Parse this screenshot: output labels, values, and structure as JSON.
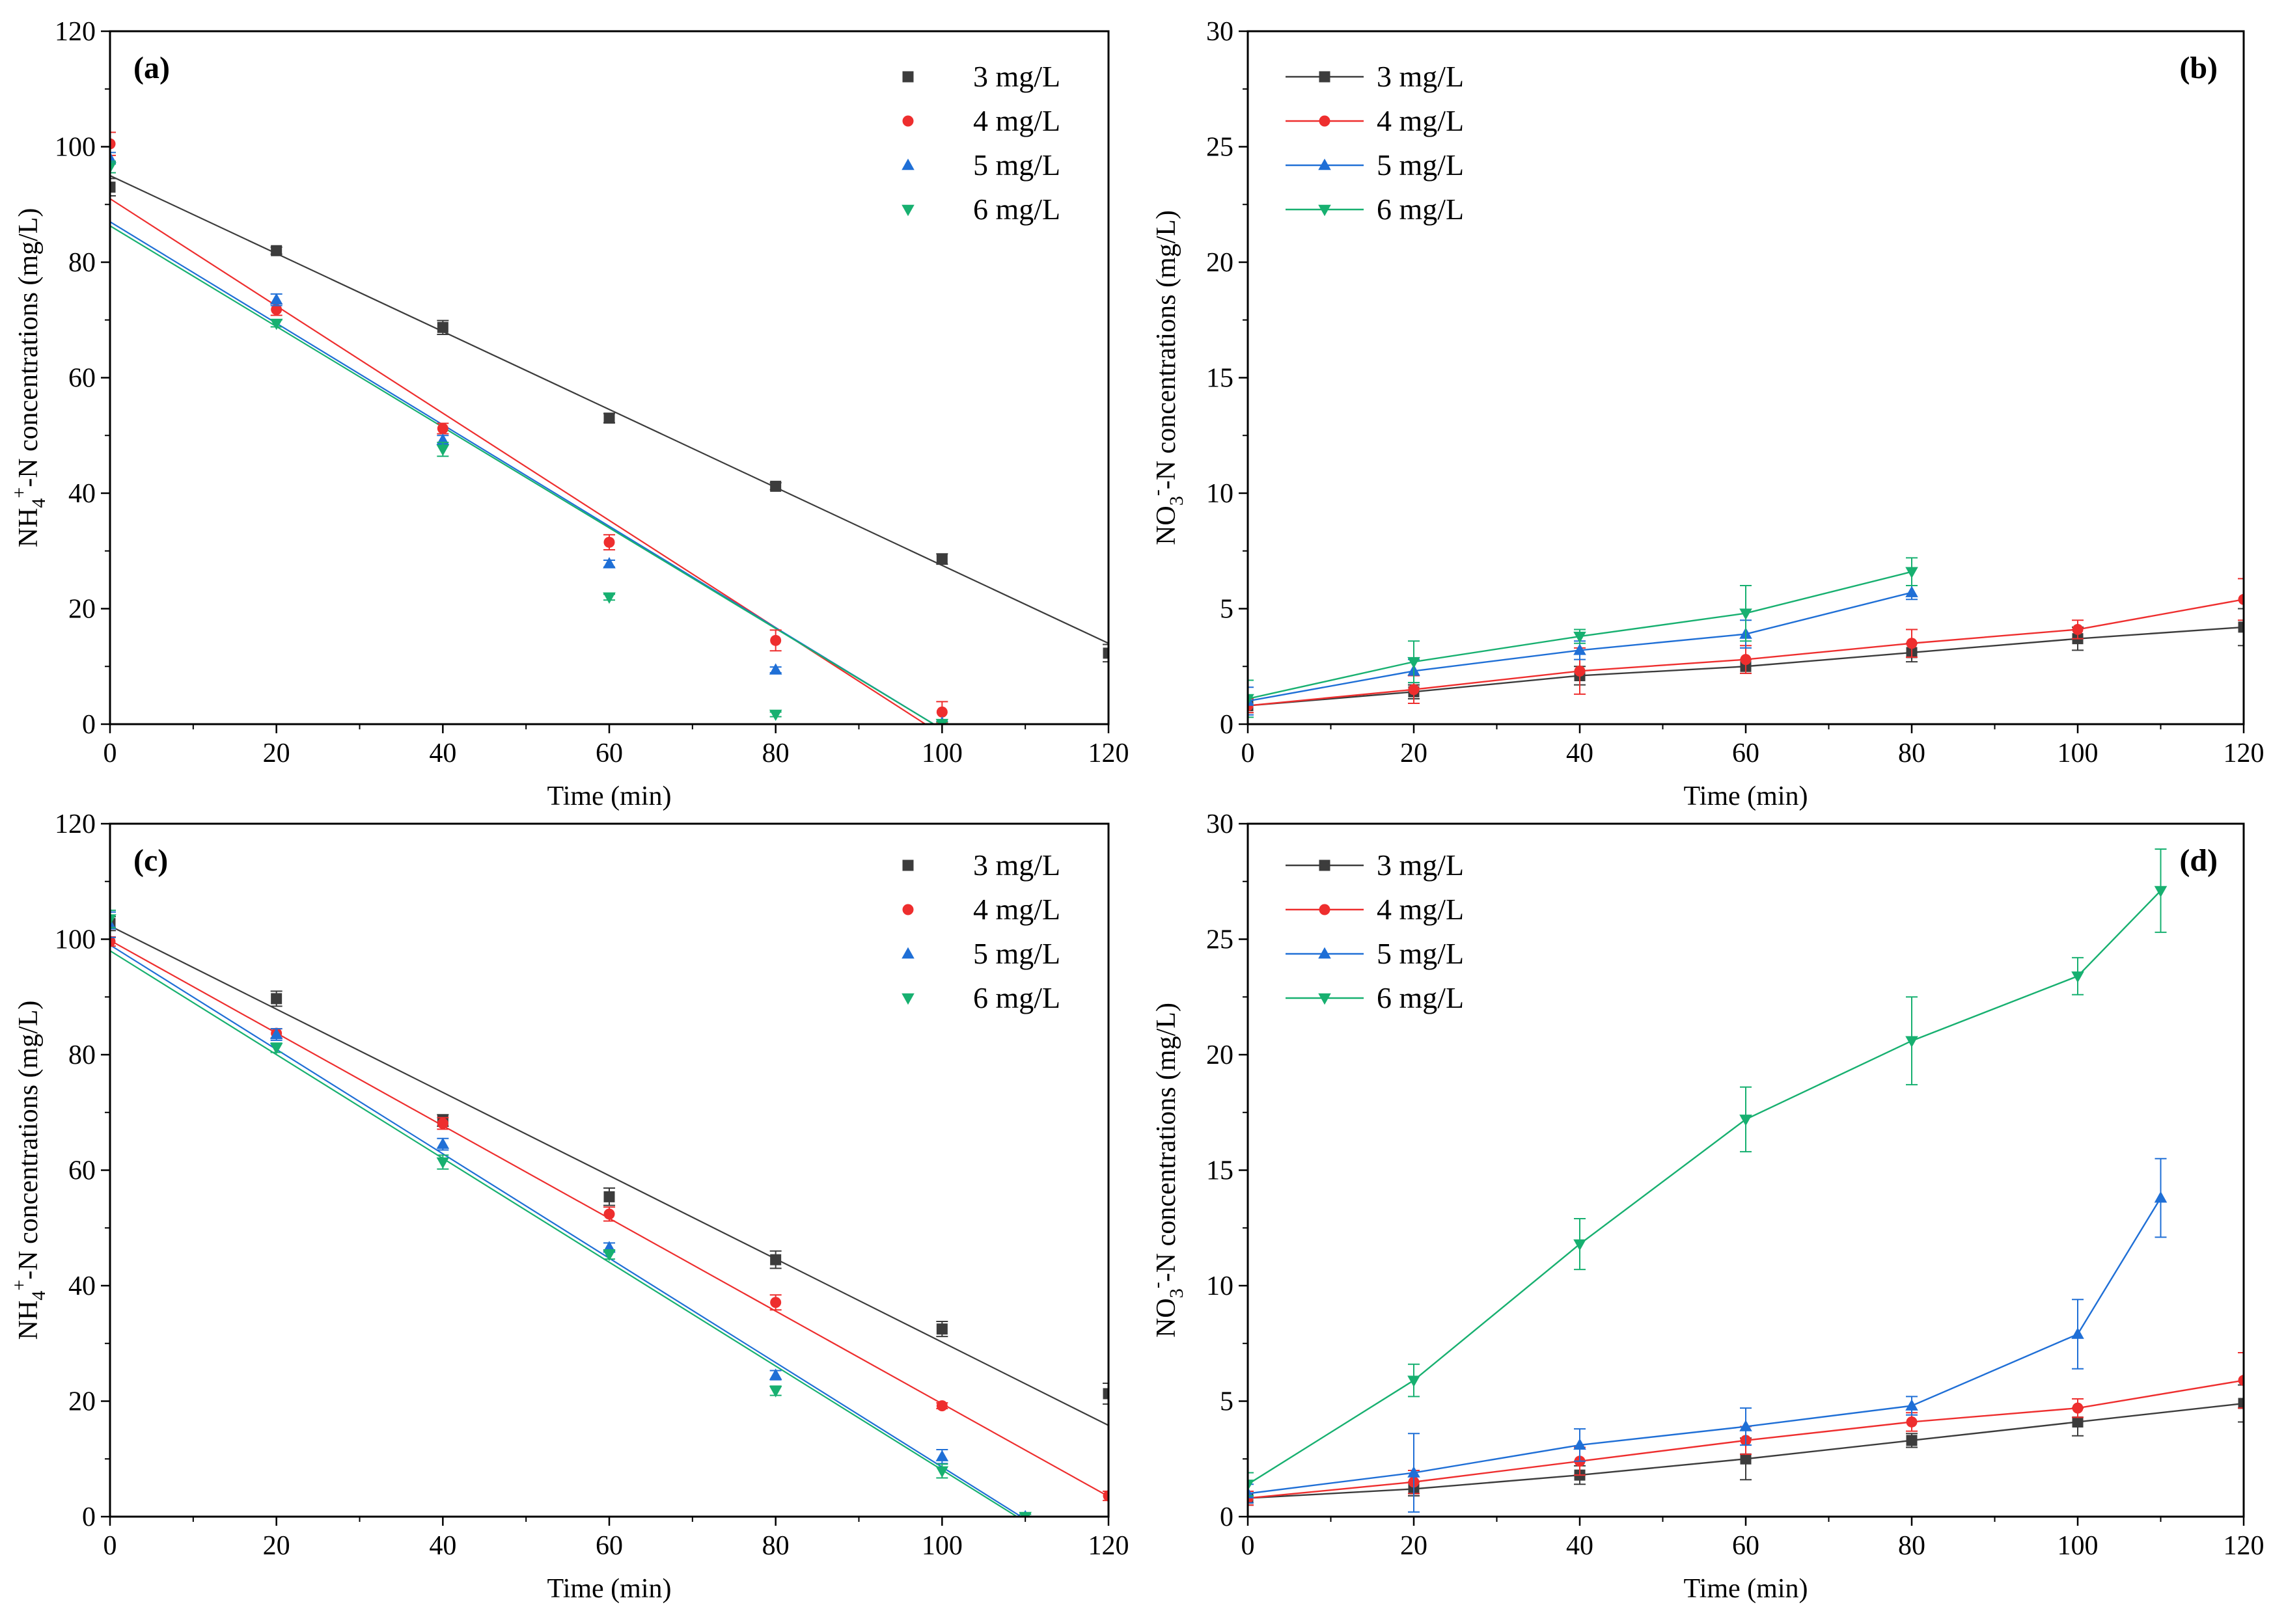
{
  "colors": {
    "3 mg/L": "#3c3c3c",
    "4 mg/L": "#ee2e2e",
    "5 mg/L": "#1f6fd6",
    "6 mg/L": "#17b070",
    "axis": "#000000"
  },
  "chart_data": [
    {
      "id": "a",
      "type": "scatter",
      "panel_label": "(a)",
      "xlabel": "Time (min)",
      "ylabel": "NH4+-N concentrations (mg/L)",
      "ylabel_parts": {
        "main": "NH",
        "sub": "4",
        "sup": "+",
        "rest": "-N concentrations (mg/L)"
      },
      "xlim": [
        0,
        120
      ],
      "ylim": [
        0,
        120
      ],
      "xticks": [
        "0",
        "20",
        "40",
        "60",
        "80",
        "100",
        "120"
      ],
      "yticks": [
        "0",
        "20",
        "40",
        "60",
        "80",
        "100",
        "120"
      ],
      "legend_position": "top-right",
      "legend_style": "markers",
      "series": [
        {
          "name": "3 mg/L",
          "marker": "square",
          "x": [
            0,
            20,
            40,
            60,
            80,
            100,
            120
          ],
          "y": [
            93,
            82,
            68.7,
            53,
            41.2,
            28.6,
            12.3
          ],
          "err": [
            1.5,
            0.6,
            1.2,
            0.8,
            0.6,
            0.9,
            1.5
          ],
          "fit": [
            [
              0,
              95
            ],
            [
              120,
              14
            ]
          ]
        },
        {
          "name": "4 mg/L",
          "marker": "circle",
          "x": [
            0,
            20,
            40,
            60,
            80,
            100
          ],
          "y": [
            100.5,
            71.8,
            51.2,
            31.5,
            14.5,
            2.1
          ],
          "err": [
            2.0,
            1.0,
            0.9,
            1.3,
            1.8,
            1.8
          ],
          "fit": [
            [
              0,
              91
            ],
            [
              98,
              0
            ]
          ]
        },
        {
          "name": "5 mg/L",
          "marker": "triangle-up",
          "x": [
            0,
            20,
            40,
            60,
            80,
            100
          ],
          "y": [
            98,
            73.5,
            49.2,
            27.8,
            9.4,
            0.2
          ],
          "err": [
            1.0,
            1.0,
            0.8,
            0.6,
            0.5,
            0.3
          ],
          "fit": [
            [
              0,
              87
            ],
            [
              99,
              0
            ]
          ]
        },
        {
          "name": "6 mg/L",
          "marker": "triangle-down",
          "x": [
            0,
            20,
            40,
            60,
            80,
            100
          ],
          "y": [
            96.5,
            69.4,
            47.6,
            22,
            1.7,
            0.1
          ],
          "err": [
            1.0,
            0.6,
            1.2,
            0.5,
            0.4,
            0.3
          ],
          "fit": [
            [
              0,
              86.3
            ],
            [
              99,
              0
            ]
          ]
        }
      ]
    },
    {
      "id": "b",
      "type": "line",
      "panel_label": "(b)",
      "xlabel": "Time (min)",
      "ylabel": "NO3--N concentrations (mg/L)",
      "ylabel_parts": {
        "main": "NO",
        "sub": "3",
        "sup": "-",
        "rest": "-N concentrations (mg/L)"
      },
      "xlim": [
        0,
        120
      ],
      "ylim": [
        0,
        30
      ],
      "xticks": [
        "0",
        "20",
        "40",
        "60",
        "80",
        "100",
        "120"
      ],
      "yticks": [
        "0",
        "5",
        "10",
        "15",
        "20",
        "25",
        "30"
      ],
      "legend_position": "top-left",
      "legend_style": "lines",
      "series": [
        {
          "name": "3 mg/L",
          "marker": "square",
          "x": [
            0,
            20,
            40,
            60,
            80,
            100,
            120
          ],
          "y": [
            0.8,
            1.4,
            2.1,
            2.5,
            3.1,
            3.7,
            4.2
          ],
          "err": [
            0.3,
            0.3,
            0.4,
            0.3,
            0.4,
            0.5,
            0.8
          ]
        },
        {
          "name": "4 mg/L",
          "marker": "circle",
          "x": [
            0,
            20,
            40,
            60,
            80,
            100,
            120
          ],
          "y": [
            0.8,
            1.5,
            2.3,
            2.8,
            3.5,
            4.1,
            5.4
          ],
          "err": [
            0.3,
            0.6,
            1.0,
            0.6,
            0.6,
            0.4,
            0.9
          ]
        },
        {
          "name": "5 mg/L",
          "marker": "triangle-up",
          "x": [
            0,
            20,
            40,
            60,
            80
          ],
          "y": [
            1.0,
            2.3,
            3.2,
            3.9,
            5.7
          ],
          "err": [
            0.6,
            0.5,
            0.4,
            0.6,
            0.3
          ]
        },
        {
          "name": "6 mg/L",
          "marker": "triangle-down",
          "x": [
            0,
            20,
            40,
            60,
            80
          ],
          "y": [
            1.1,
            2.7,
            3.8,
            4.8,
            6.6
          ],
          "err": [
            0.8,
            0.9,
            0.3,
            1.2,
            0.6
          ]
        }
      ]
    },
    {
      "id": "c",
      "type": "scatter",
      "panel_label": "(c)",
      "xlabel": "Time (min)",
      "ylabel": "NH4+-N concentrations (mg/L)",
      "ylabel_parts": {
        "main": "NH",
        "sub": "4",
        "sup": "+",
        "rest": "-N concentrations (mg/L)"
      },
      "xlim": [
        0,
        120
      ],
      "ylim": [
        0,
        120
      ],
      "xticks": [
        "0",
        "20",
        "40",
        "60",
        "80",
        "100",
        "120"
      ],
      "yticks": [
        "0",
        "20",
        "40",
        "60",
        "80",
        "100",
        "120"
      ],
      "legend_position": "top-right",
      "legend_style": "markers",
      "series": [
        {
          "name": "3 mg/L",
          "marker": "square",
          "x": [
            0,
            20,
            40,
            60,
            80,
            100,
            120
          ],
          "y": [
            102.7,
            89.7,
            68.6,
            55.4,
            44.5,
            32.5,
            21.3
          ],
          "err": [
            1.2,
            1.3,
            1.0,
            1.5,
            1.5,
            1.3,
            1.8
          ]
        },
        {
          "name": "4 mg/L",
          "marker": "circle",
          "x": [
            0,
            20,
            40,
            60,
            80,
            100,
            120
          ],
          "y": [
            99.6,
            83.7,
            68.1,
            52.4,
            37.1,
            19.2,
            3.6
          ],
          "err": [
            0.8,
            0.8,
            1.0,
            1.2,
            1.3,
            0.5,
            0.8
          ]
        },
        {
          "name": "5 mg/L",
          "marker": "triangle-up",
          "x": [
            0,
            20,
            40,
            60,
            80,
            100,
            110
          ],
          "y": [
            102.5,
            83.5,
            64.5,
            46.6,
            24.5,
            10.4,
            0
          ],
          "err": [
            2.2,
            1.0,
            1.0,
            0.8,
            0.8,
            1.2,
            0.4
          ]
        },
        {
          "name": "6 mg/L",
          "marker": "triangle-down",
          "x": [
            0,
            20,
            40,
            60,
            80,
            100,
            110
          ],
          "y": [
            103.5,
            81.2,
            61.4,
            45.4,
            21.8,
            7.9,
            0
          ],
          "err": [
            1.5,
            0.8,
            1.2,
            0.8,
            0.8,
            1.2,
            0.4
          ]
        }
      ],
      "fits": [
        {
          "name": "3 mg/L",
          "points": [
            [
              0,
              102.3
            ],
            [
              120,
              15.8
            ]
          ]
        },
        {
          "name": "4 mg/L",
          "points": [
            [
              0,
              99.8
            ],
            [
              120,
              3.5
            ]
          ]
        },
        {
          "name": "5 mg/L",
          "points": [
            [
              0,
              99
            ],
            [
              109.5,
              0
            ]
          ]
        },
        {
          "name": "6 mg/L",
          "points": [
            [
              0,
              98
            ],
            [
              109,
              0
            ]
          ]
        }
      ]
    },
    {
      "id": "d",
      "type": "line",
      "panel_label": "(d)",
      "xlabel": "Time (min)",
      "ylabel": "NO3--N concentrations (mg/L)",
      "ylabel_parts": {
        "main": "NO",
        "sub": "3",
        "sup": "-",
        "rest": "-N concentrations (mg/L)"
      },
      "xlim": [
        0,
        120
      ],
      "ylim": [
        0,
        30
      ],
      "xticks": [
        "0",
        "20",
        "40",
        "60",
        "80",
        "100",
        "120"
      ],
      "yticks": [
        "0",
        "5",
        "10",
        "15",
        "20",
        "25",
        "30"
      ],
      "legend_position": "top-left",
      "legend_style": "lines",
      "series": [
        {
          "name": "3 mg/L",
          "marker": "square",
          "x": [
            0,
            20,
            40,
            60,
            80,
            100,
            120
          ],
          "y": [
            0.8,
            1.2,
            1.8,
            2.5,
            3.3,
            4.1,
            4.9
          ],
          "err": [
            0.3,
            0.3,
            0.4,
            0.9,
            0.3,
            0.6,
            0.8
          ]
        },
        {
          "name": "4 mg/L",
          "marker": "circle",
          "x": [
            0,
            20,
            40,
            60,
            80,
            100,
            120
          ],
          "y": [
            0.8,
            1.5,
            2.4,
            3.3,
            4.1,
            4.7,
            5.9
          ],
          "err": [
            0.3,
            0.5,
            0.6,
            0.6,
            0.4,
            0.4,
            1.2
          ]
        },
        {
          "name": "5 mg/L",
          "marker": "triangle-up",
          "x": [
            0,
            20,
            40,
            60,
            80,
            100,
            110
          ],
          "y": [
            1.0,
            1.9,
            3.1,
            3.9,
            4.8,
            7.9,
            13.8
          ],
          "err": [
            0.4,
            1.7,
            0.7,
            0.8,
            0.4,
            1.5,
            1.7
          ]
        },
        {
          "name": "6 mg/L",
          "marker": "triangle-down",
          "x": [
            0,
            20,
            40,
            60,
            80,
            100,
            110
          ],
          "y": [
            1.4,
            5.9,
            11.8,
            17.2,
            20.6,
            23.4,
            27.1
          ],
          "err": [
            0.5,
            0.7,
            1.1,
            1.4,
            1.9,
            0.8,
            1.8
          ]
        }
      ]
    }
  ]
}
